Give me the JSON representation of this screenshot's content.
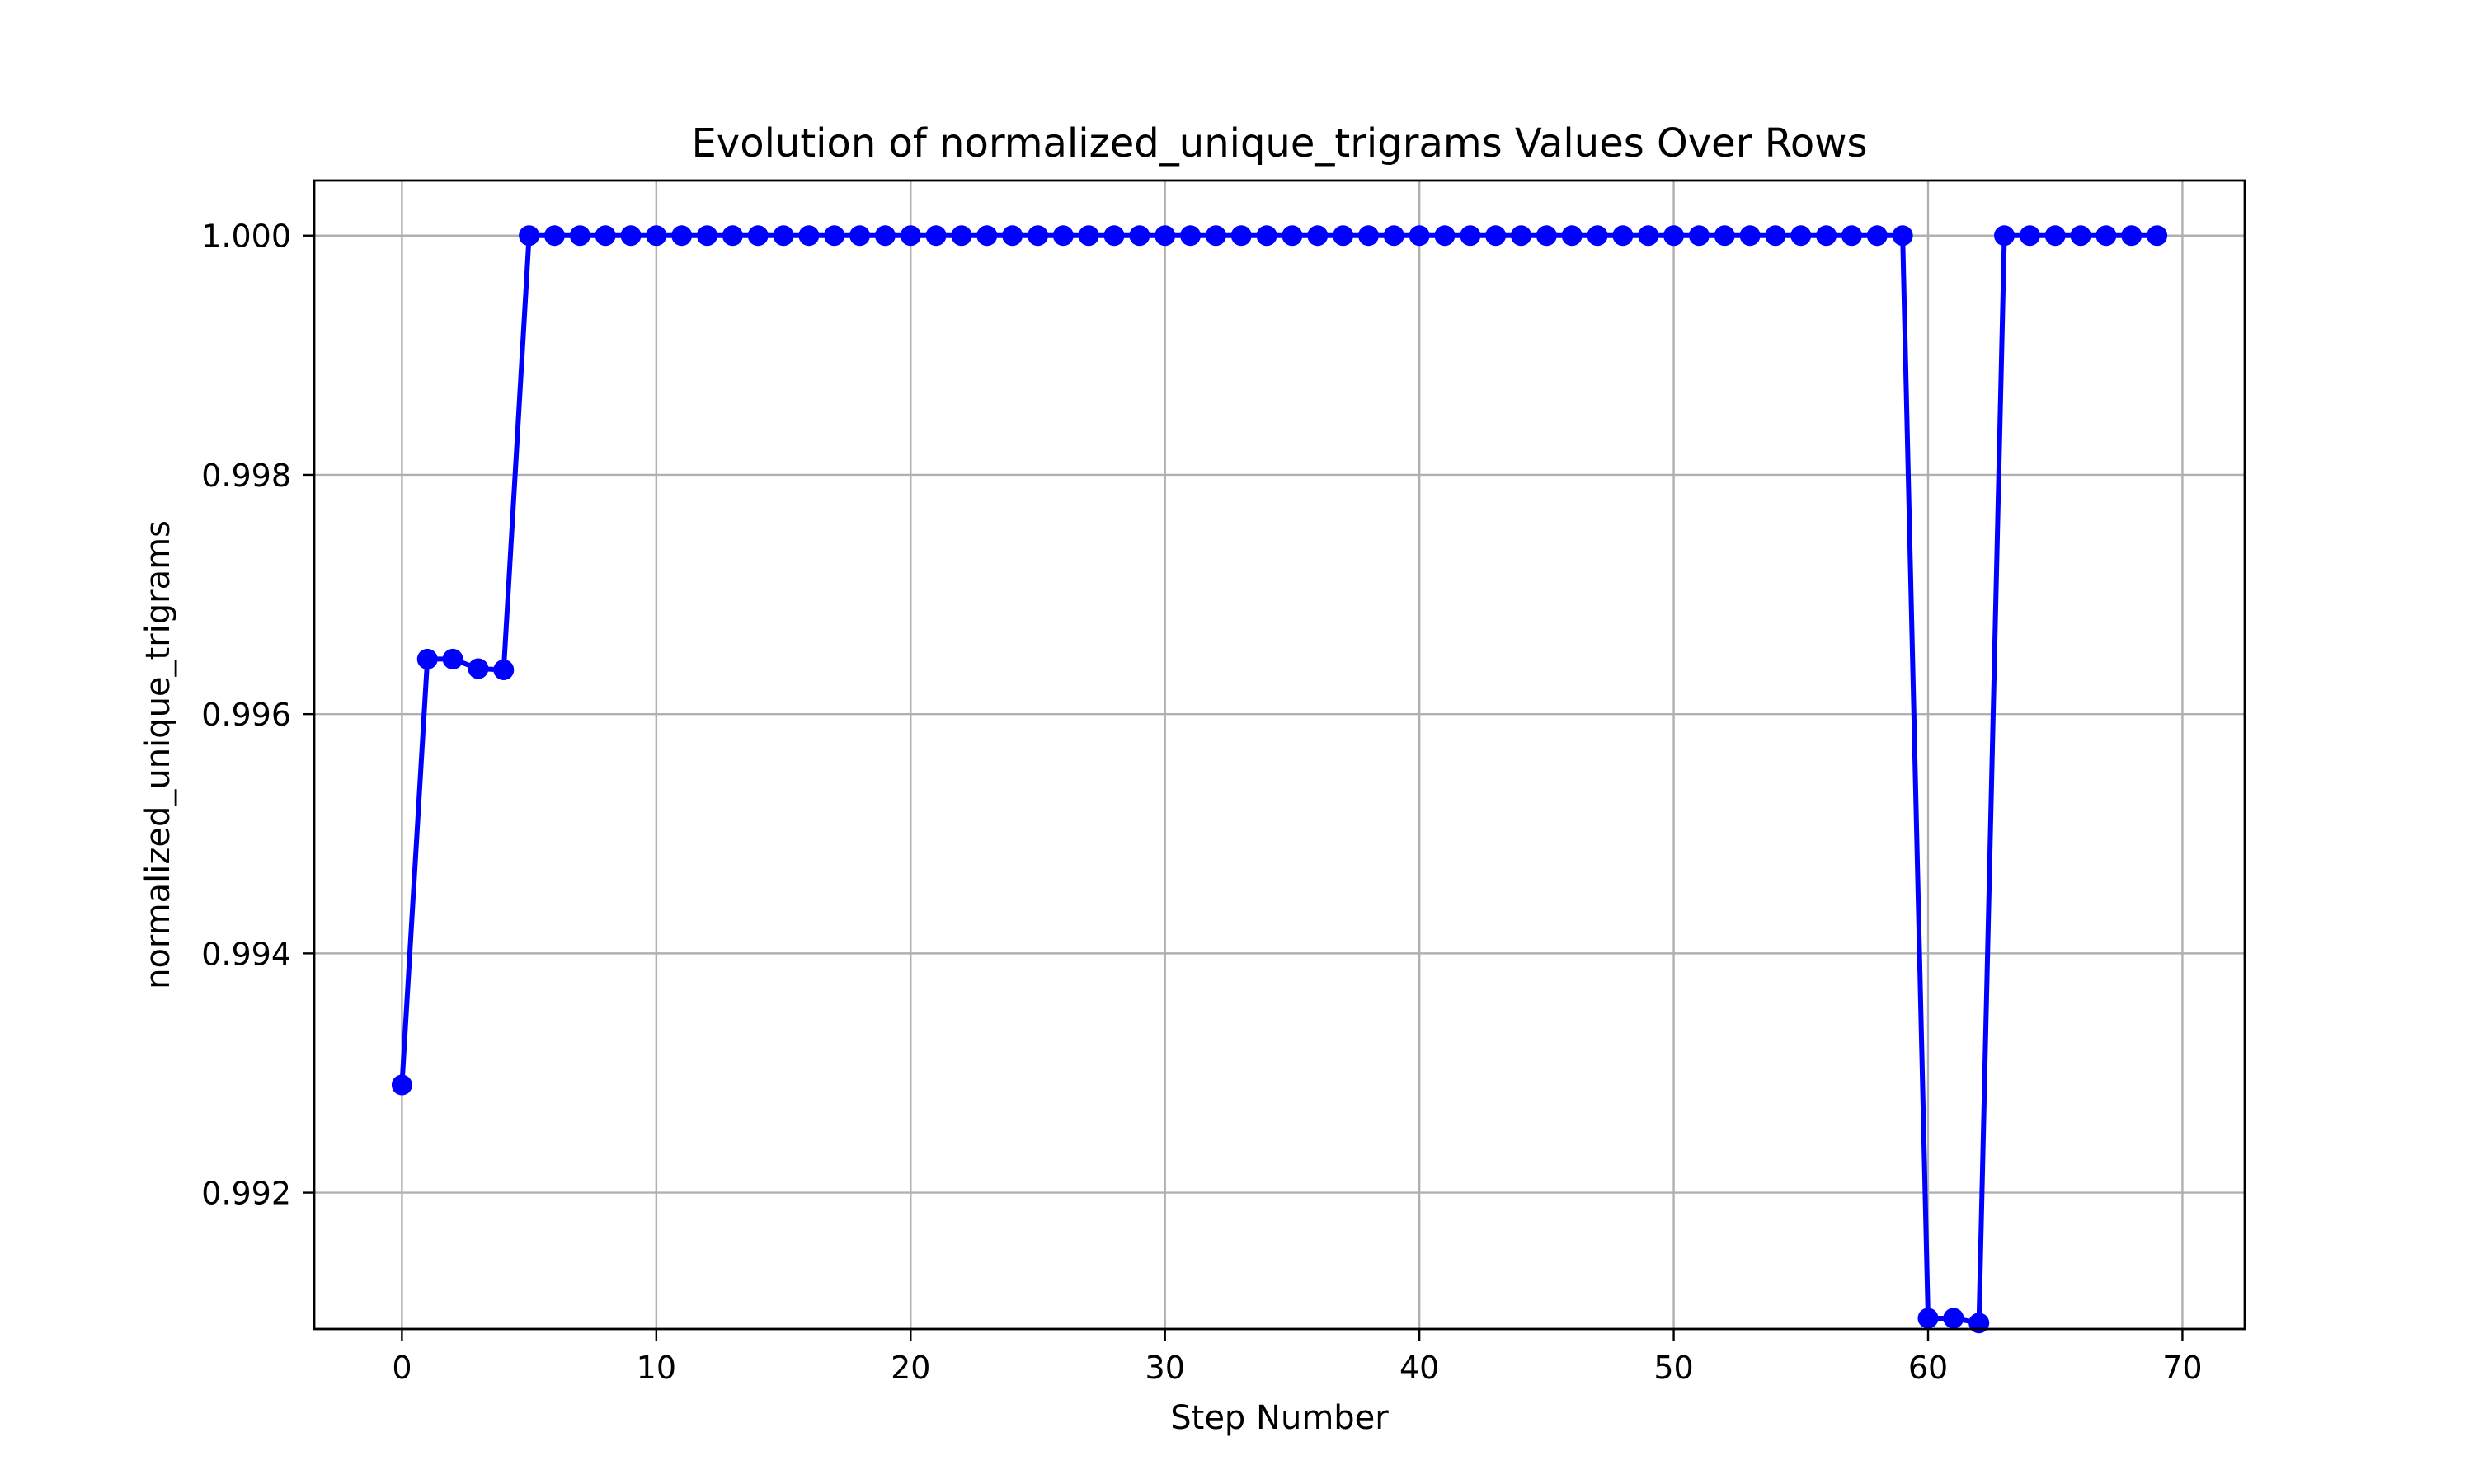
{
  "chart_data": {
    "type": "line",
    "title": "Evolution of normalized_unique_trigrams Values Over Rows",
    "xlabel": "Step Number",
    "ylabel": "normalized_unique_trigrams",
    "xlim": [
      -3.45,
      72.45
    ],
    "ylim": [
      0.99086,
      1.00046
    ],
    "xticks": [
      0,
      10,
      20,
      30,
      40,
      50,
      60,
      70
    ],
    "xtick_labels": [
      "0",
      "10",
      "20",
      "30",
      "40",
      "50",
      "60",
      "70"
    ],
    "yticks": [
      0.992,
      0.994,
      0.996,
      0.998,
      1.0
    ],
    "ytick_labels": [
      "0.992",
      "0.994",
      "0.996",
      "0.998",
      "1.000"
    ],
    "grid": true,
    "color": "#0000ff",
    "marker": "circle",
    "series": [
      {
        "x": [
          0,
          1,
          2,
          3,
          4,
          5,
          6,
          7,
          8,
          9,
          10,
          11,
          12,
          13,
          14,
          15,
          16,
          17,
          18,
          19,
          20,
          21,
          22,
          23,
          24,
          25,
          26,
          27,
          28,
          29,
          30,
          31,
          32,
          33,
          34,
          35,
          36,
          37,
          38,
          39,
          40,
          41,
          42,
          43,
          44,
          45,
          46,
          47,
          48,
          49,
          50,
          51,
          52,
          53,
          54,
          55,
          56,
          57,
          58,
          59,
          60,
          61,
          62,
          63,
          64,
          65,
          66,
          67,
          68,
          69
        ],
        "y": [
          0.9929,
          0.99646,
          0.99646,
          0.99638,
          0.99637,
          1.0,
          1.0,
          1.0,
          1.0,
          1.0,
          1.0,
          1.0,
          1.0,
          1.0,
          1.0,
          1.0,
          1.0,
          1.0,
          1.0,
          1.0,
          1.0,
          1.0,
          1.0,
          1.0,
          1.0,
          1.0,
          1.0,
          1.0,
          1.0,
          1.0,
          1.0,
          1.0,
          1.0,
          1.0,
          1.0,
          1.0,
          1.0,
          1.0,
          1.0,
          1.0,
          1.0,
          1.0,
          1.0,
          1.0,
          1.0,
          1.0,
          1.0,
          1.0,
          1.0,
          1.0,
          1.0,
          1.0,
          1.0,
          1.0,
          1.0,
          1.0,
          1.0,
          1.0,
          1.0,
          1.0,
          0.99095,
          0.99095,
          0.99091,
          1.0,
          1.0,
          1.0,
          1.0,
          1.0,
          1.0,
          1.0
        ]
      }
    ]
  }
}
